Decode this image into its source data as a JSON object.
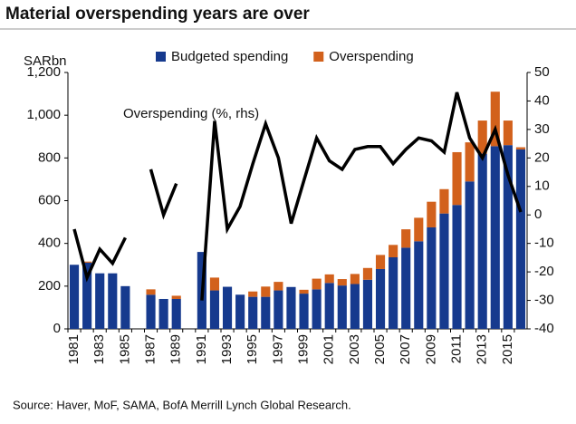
{
  "chart_data": {
    "type": "bar",
    "title": "Material overspending years are over",
    "y_label": "SARbn",
    "annotation": "Overspending (%, rhs)",
    "source": "Source: Haver, MoF, SAMA, BofA Merrill Lynch Global Research.",
    "stacked": true,
    "categories": [
      "1981",
      null,
      "1983",
      null,
      "1985",
      null,
      "1987",
      null,
      "1989",
      null,
      "1991",
      null,
      "1993",
      null,
      "1995",
      null,
      "1997",
      null,
      "1999",
      null,
      "2001",
      null,
      "2003",
      null,
      "2005",
      null,
      "2007",
      null,
      "2009",
      null,
      "2011",
      null,
      "2013",
      null,
      "2015",
      null
    ],
    "series": [
      {
        "name": "Budgeted spending",
        "color": "#163a8e",
        "values": [
          300,
          310,
          260,
          260,
          200,
          null,
          160,
          140,
          140,
          null,
          360,
          180,
          197,
          160,
          150,
          150,
          180,
          196,
          165,
          185,
          215,
          203,
          210,
          230,
          280,
          335,
          380,
          410,
          475,
          540,
          580,
          690,
          820,
          855,
          860,
          840
        ]
      },
      {
        "name": "Overspending",
        "color": "#d2611c",
        "values": [
          0,
          5,
          0,
          0,
          0,
          null,
          25,
          0,
          15,
          null,
          0,
          60,
          0,
          0,
          25,
          48,
          40,
          0,
          18,
          50,
          40,
          30,
          47,
          55,
          66,
          58,
          86,
          110,
          120,
          114,
          247,
          183,
          155,
          255,
          115,
          10
        ]
      },
      {
        "type": "line",
        "axis": "y2",
        "color": "#000000",
        "values": [
          -5,
          -22,
          -12,
          -17,
          -8,
          null,
          16,
          0,
          11,
          null,
          -30,
          33,
          -5,
          3,
          18,
          32,
          20,
          -3,
          12,
          27,
          19,
          16,
          23,
          24,
          24,
          18,
          23,
          27,
          26,
          22,
          43,
          27,
          20,
          30,
          14,
          1
        ]
      }
    ],
    "ylim": [
      0,
      1200
    ],
    "yticks": [
      0,
      200,
      400,
      600,
      800,
      {
        "value": 1000,
        "label": "1,000"
      },
      {
        "value": 1200,
        "label": "1,200"
      }
    ],
    "y2lim": [
      -40,
      50
    ],
    "y2ticks": [
      -40,
      -30,
      -20,
      -10,
      0,
      10,
      20,
      30,
      40,
      50
    ],
    "legend": "top"
  }
}
